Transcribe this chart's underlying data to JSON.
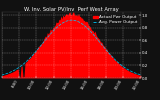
{
  "title": "W. Inv. Solar PV/Inv  Perf West Array",
  "legend1": "-- Actual Pwr Output",
  "legend2": "-- Avg. Power Output",
  "bg_color": "#111111",
  "plot_bg": "#111111",
  "actual_color": "#ff0000",
  "avg_color": "#00ccff",
  "grid_color": "#aaaaaa",
  "n_points": 144,
  "peak_index": 72,
  "sigma": 28,
  "ylim": [
    0,
    1.05
  ],
  "title_fontsize": 3.8,
  "label_fontsize": 3.0,
  "tick_fontsize": 2.8,
  "legend_fontsize": 3.0
}
